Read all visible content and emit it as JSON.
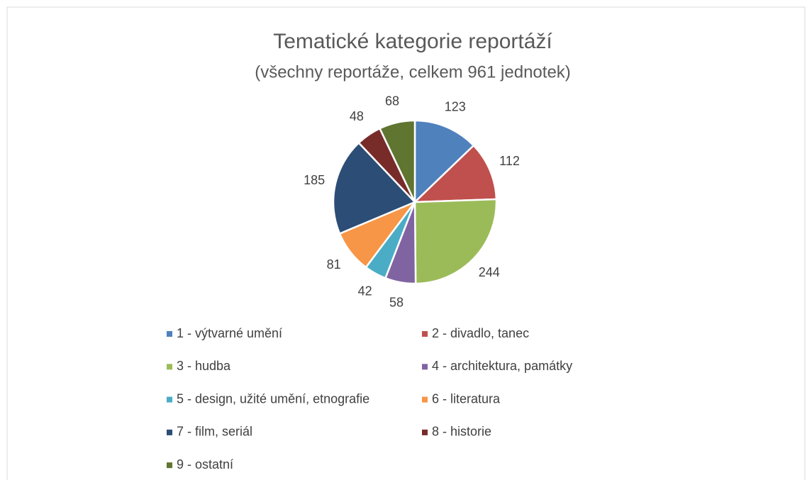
{
  "chart_data": {
    "type": "pie",
    "title": "Tematické kategorie reportáží",
    "subtitle": "(všechny reportáže, celkem 961 jednotek)",
    "categories": [
      "1 - výtvarné umění",
      "2 - divadlo, tanec",
      "3 - hudba",
      "4 - architektura, památky",
      "5 - design, užité umění, etnografie",
      "6 - literatura",
      "7 - film, seriál",
      "8 - historie",
      "9 - ostatní"
    ],
    "values": [
      123,
      112,
      244,
      58,
      42,
      81,
      185,
      48,
      68
    ],
    "colors": [
      "#4f81bd",
      "#c0504d",
      "#9bbb59",
      "#8064a2",
      "#4bacc6",
      "#f79646",
      "#2c4d75",
      "#772c2a",
      "#5f7530"
    ],
    "legend": "bottom"
  }
}
